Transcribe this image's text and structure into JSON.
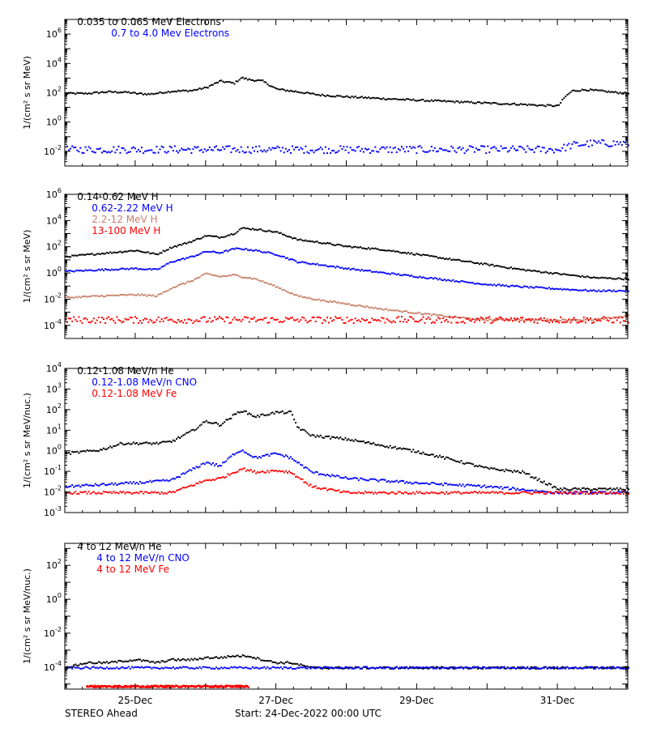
{
  "chart_data": [
    {
      "type": "scatter",
      "yscale": "log",
      "ylabel": "1/(cm² s sr MeV)",
      "ylim": [
        0.001,
        10000000
      ],
      "yticks": [
        0.01,
        1,
        100,
        10000,
        1000000
      ],
      "ytick_labels": [
        [
          "10",
          "-2"
        ],
        [
          "10",
          "0"
        ],
        [
          "10",
          "2"
        ],
        [
          "10",
          "4"
        ],
        [
          "10",
          "6"
        ]
      ],
      "series": [
        {
          "name": "0.035 to 0.065 MeV Electrons",
          "color": "#000000",
          "x": [
            0,
            0.3,
            0.6,
            0.9,
            1.0,
            1.2,
            1.5,
            1.8,
            2.0,
            2.2,
            2.4,
            2.5,
            2.6,
            2.8,
            3.0,
            3.3,
            3.6,
            4.0,
            4.5,
            5.0,
            5.5,
            6.0,
            6.5,
            6.8,
            6.9,
            7.0,
            7.1,
            7.2,
            7.4,
            7.6,
            7.8,
            8.0
          ],
          "y": [
            100,
            100,
            130,
            120,
            100,
            90,
            140,
            160,
            250,
            700,
            500,
            1200,
            900,
            700,
            200,
            130,
            80,
            60,
            45,
            35,
            28,
            22,
            18,
            15,
            15,
            14,
            60,
            150,
            180,
            150,
            120,
            100
          ]
        },
        {
          "name": "0.7 to 4.0 Mev Electrons",
          "color": "#0000ff",
          "x": [
            0,
            1,
            2,
            3,
            4,
            5,
            6,
            7,
            7.2,
            7.5,
            8
          ],
          "y": [
            0.015,
            0.015,
            0.015,
            0.015,
            0.015,
            0.015,
            0.015,
            0.015,
            0.03,
            0.04,
            0.04
          ]
        }
      ]
    },
    {
      "type": "scatter",
      "yscale": "log",
      "ylabel": "1/(cm² s sr MeV)",
      "ylim": [
        1e-05,
        1000000
      ],
      "yticks": [
        0.0001,
        0.01,
        1,
        100,
        10000,
        1000000
      ],
      "ytick_labels": [
        [
          "10",
          "-4"
        ],
        [
          "10",
          "-2"
        ],
        [
          "10",
          "0"
        ],
        [
          "10",
          "2"
        ],
        [
          "10",
          "4"
        ],
        [
          "10",
          "6"
        ]
      ],
      "series": [
        {
          "name": "0.14-0.62 MeV H",
          "color": "#000000",
          "x": [
            0,
            0.5,
            1.0,
            1.3,
            1.5,
            1.8,
            2.0,
            2.2,
            2.4,
            2.5,
            2.7,
            3.0,
            3.3,
            3.6,
            4.0,
            4.5,
            5.0,
            5.5,
            6.0,
            6.5,
            7.0,
            7.5,
            8.0
          ],
          "y": [
            20,
            35,
            60,
            30,
            100,
            300,
            800,
            600,
            1200,
            3000,
            2500,
            1500,
            400,
            250,
            120,
            70,
            30,
            12,
            5,
            2,
            1,
            0.5,
            0.4
          ]
        },
        {
          "name": "0.62-2.22 MeV H",
          "color": "#0000ff",
          "x": [
            0,
            0.5,
            1.0,
            1.3,
            1.5,
            1.8,
            2.0,
            2.2,
            2.4,
            2.5,
            2.7,
            3.0,
            3.3,
            3.6,
            4.0,
            4.5,
            5.0,
            5.5,
            6.0,
            6.5,
            7.0,
            7.5,
            8.0
          ],
          "y": [
            1.5,
            2,
            2.5,
            2,
            8,
            20,
            50,
            40,
            80,
            80,
            60,
            30,
            8,
            5,
            2.5,
            1.2,
            0.6,
            0.3,
            0.15,
            0.1,
            0.07,
            0.05,
            0.05
          ]
        },
        {
          "name": "2.2-12 MeV H",
          "color": "#c8826a",
          "x": [
            0,
            0.5,
            1.0,
            1.3,
            1.5,
            1.8,
            2.0,
            2.2,
            2.4,
            2.5,
            2.7,
            3.0,
            3.3,
            3.6,
            4.0,
            4.5,
            5.0,
            5.5,
            6.0,
            6.5,
            7.0,
            7.5,
            8.0
          ],
          "y": [
            0.015,
            0.02,
            0.025,
            0.02,
            0.08,
            0.3,
            1,
            0.6,
            0.8,
            0.6,
            0.4,
            0.1,
            0.02,
            0.01,
            0.005,
            0.002,
            0.001,
            0.0005,
            0.0003,
            0.0003,
            0.0003,
            0.0003,
            0.0006
          ]
        },
        {
          "name": "13-100 MeV H",
          "color": "#ff0000",
          "x": [
            0,
            1,
            2,
            3,
            4,
            5,
            6,
            7,
            8
          ],
          "y": [
            0.0003,
            0.0003,
            0.0003,
            0.0003,
            0.0003,
            0.0003,
            0.0003,
            0.0003,
            0.0003
          ]
        }
      ]
    },
    {
      "type": "scatter",
      "yscale": "log",
      "ylabel": "1/(cm² s sr MeV/nuc.)",
      "ylim": [
        0.001,
        10000
      ],
      "yticks": [
        0.001,
        0.01,
        0.1,
        1,
        10,
        100,
        1000,
        10000
      ],
      "ytick_labels": [
        [
          "10",
          "-3"
        ],
        [
          "10",
          "-2"
        ],
        [
          "10",
          "-1"
        ],
        [
          "10",
          "0"
        ],
        [
          "10",
          "1"
        ],
        [
          "10",
          "2"
        ],
        [
          "10",
          "3"
        ],
        [
          "10",
          "4"
        ]
      ],
      "series": [
        {
          "name": "0.12-1.08 MeV/n He",
          "color": "#000000",
          "x": [
            0,
            0.5,
            0.8,
            1.0,
            1.3,
            1.5,
            1.8,
            2.0,
            2.2,
            2.4,
            2.5,
            2.7,
            3.0,
            3.2,
            3.3,
            3.5,
            4.0,
            4.5,
            5.0,
            5.5,
            6.0,
            6.5,
            7.0,
            7.5,
            8.0
          ],
          "y": [
            0.8,
            1.2,
            2.5,
            2.5,
            2.5,
            3,
            10,
            30,
            20,
            60,
            100,
            50,
            80,
            80,
            15,
            6,
            4,
            2,
            1,
            0.4,
            0.15,
            0.1,
            0.015,
            0.015,
            0.015
          ]
        },
        {
          "name": "0.12-1.08 MeV/n CNO",
          "color": "#0000ff",
          "x": [
            0,
            1,
            1.5,
            2.0,
            2.2,
            2.4,
            2.5,
            2.7,
            3.0,
            3.2,
            3.5,
            4.0,
            5.0,
            6.0,
            7.0,
            8.0
          ],
          "y": [
            0.02,
            0.03,
            0.04,
            0.3,
            0.2,
            0.8,
            1.2,
            0.5,
            0.8,
            0.5,
            0.1,
            0.05,
            0.03,
            0.02,
            0.01,
            0.01
          ]
        },
        {
          "name": "0.12-1.08 MeV Fe",
          "color": "#ff0000",
          "x": [
            0,
            1,
            1.5,
            2.0,
            2.2,
            2.4,
            2.5,
            2.7,
            3.0,
            3.2,
            3.5,
            4.0,
            5.0,
            6.0,
            7.0,
            8.0
          ],
          "y": [
            0.01,
            0.01,
            0.01,
            0.04,
            0.05,
            0.1,
            0.15,
            0.1,
            0.12,
            0.1,
            0.02,
            0.01,
            0.01,
            0.01,
            0.01,
            0.01
          ]
        }
      ]
    },
    {
      "type": "scatter",
      "yscale": "log",
      "ylabel": "1/(cm² s sr MeV/nuc.)",
      "ylim": [
        5e-06,
        2000
      ],
      "yticks": [
        0.0001,
        0.01,
        1,
        100
      ],
      "ytick_labels": [
        [
          "10",
          "-4"
        ],
        [
          "10",
          "-2"
        ],
        [
          "10",
          "0"
        ],
        [
          "10",
          "2"
        ]
      ],
      "series": [
        {
          "name": "4 to 12 MeV/n He",
          "color": "#000000",
          "x": [
            0,
            0.3,
            0.6,
            1.0,
            1.3,
            1.5,
            1.8,
            2.0,
            2.2,
            2.4,
            2.6,
            2.8,
            3.0,
            3.2,
            3.5,
            4.5,
            5.5,
            6.5,
            7.5,
            8.0
          ],
          "y": [
            0.0001,
            0.0002,
            0.0002,
            0.0003,
            0.0002,
            0.0003,
            0.0003,
            0.0004,
            0.0004,
            0.0005,
            0.0005,
            0.0003,
            0.0002,
            0.0002,
            0.0001,
            0.0001,
            0.0001,
            0.0001,
            0.0001,
            0.0001
          ]
        },
        {
          "name": "4 to 12 MeV/n CNO",
          "color": "#0000ff",
          "x": [
            0,
            1,
            2,
            3,
            4,
            5,
            6,
            7,
            8
          ],
          "y": [
            0.0001,
            0.0001,
            0.0001,
            0.0001,
            0.0001,
            0.0001,
            0.0001,
            0.0001,
            0.0001
          ]
        },
        {
          "name": "4 to 12 MeV Fe",
          "color": "#ff0000",
          "x": [
            0.3,
            1.0,
            1.8,
            2.6
          ],
          "y": [
            8e-06,
            8e-06,
            8e-06,
            8e-06
          ]
        }
      ]
    }
  ],
  "x_axis": {
    "unit": "days since 24-Dec-2022 00:00 UTC",
    "range": [
      0,
      8
    ],
    "ticks": [
      1,
      3,
      5,
      7
    ],
    "minor_ticks_per_day": 4,
    "tick_labels": [
      "25-Dec",
      "27-Dec",
      "29-Dec",
      "31-Dec"
    ]
  },
  "footer": {
    "left": "STEREO Ahead",
    "center": "Start: 24-Dec-2022 00:00 UTC"
  },
  "colors": {
    "black": "#000000",
    "blue": "#0000ff",
    "tan": "#c8826a",
    "red": "#ff0000"
  }
}
